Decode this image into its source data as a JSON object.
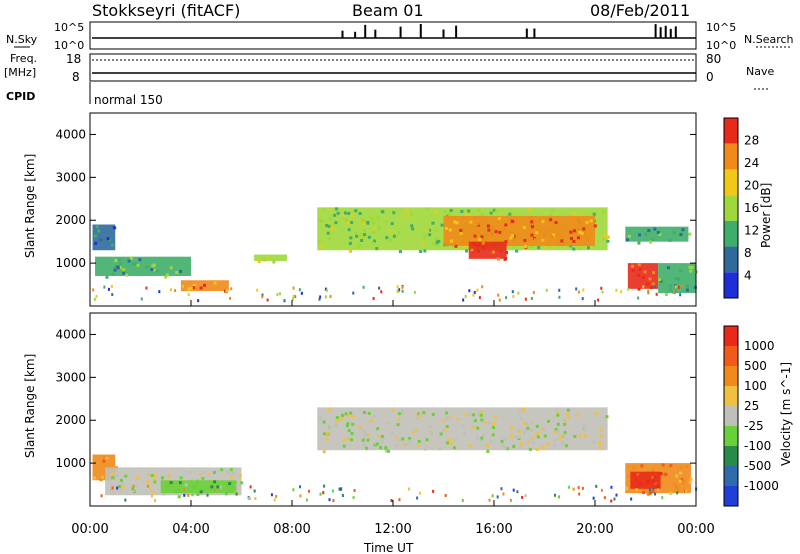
{
  "header": {
    "station": "Stokkseyri (fitACF)",
    "beam": "Beam 01",
    "date": "08/Feb/2011"
  },
  "noise_panel": {
    "left_label": "N.Sky",
    "right_label": "N.Search",
    "left_ticks": [
      "10^5",
      "10^0"
    ],
    "right_ticks": [
      "10^5",
      "10^0"
    ]
  },
  "freq_panel": {
    "left_label_line1": "Freq.",
    "left_label_line2": "[MHz]",
    "right_label": "Nave",
    "left_ticks": [
      "18",
      "8"
    ],
    "right_ticks": [
      "80",
      "0"
    ]
  },
  "cpid_panel": {
    "label": "CPID",
    "mode": "normal 150"
  },
  "power_panel": {
    "ylabel": "Slant Range [km]",
    "yticks": [
      "4000",
      "3000",
      "2000",
      "1000"
    ],
    "colorbar_label": "Power [dB]",
    "colorbar_ticks": [
      "28",
      "24",
      "20",
      "16",
      "12",
      "8",
      "4"
    ],
    "colors": [
      "#1f2fd8",
      "#2f6a9a",
      "#3fae6a",
      "#9fd83a",
      "#f0c81a",
      "#f08a1a",
      "#e82a1a"
    ]
  },
  "velocity_panel": {
    "ylabel": "Slant Range [km]",
    "yticks": [
      "4000",
      "3000",
      "2000",
      "1000"
    ],
    "colorbar_label": "Velocity  [m s^-1]",
    "colorbar_ticks": [
      "1000",
      "500",
      "100",
      "25",
      "-25",
      "-100",
      "-500",
      "-1000"
    ],
    "colors": [
      "#1f3fd8",
      "#2f6aaa",
      "#2a8a4a",
      "#6ad03a",
      "#c0c0b8",
      "#f0c040",
      "#f08a1a",
      "#f05a1a",
      "#e82a1a"
    ]
  },
  "xaxis": {
    "label": "Time UT",
    "ticks": [
      "00:00",
      "04:00",
      "08:00",
      "12:00",
      "16:00",
      "20:00",
      "00:00"
    ]
  },
  "chart_data": {
    "type": "heatmap",
    "x_unit": "hours UT",
    "x_range": [
      0,
      24
    ],
    "y_range": [
      0,
      4500
    ],
    "power_regions": [
      {
        "t0": 0.1,
        "t1": 1.0,
        "r0": 1300,
        "r1": 1900,
        "level": 1
      },
      {
        "t0": 0.2,
        "t1": 4.0,
        "r0": 700,
        "r1": 1150,
        "level": 2
      },
      {
        "t0": 3.6,
        "t1": 5.5,
        "r0": 350,
        "r1": 600,
        "level": 5
      },
      {
        "t0": 6.5,
        "t1": 7.8,
        "r0": 1050,
        "r1": 1200,
        "level": 3
      },
      {
        "t0": 9.0,
        "t1": 20.5,
        "r0": 1300,
        "r1": 2300,
        "level": 3
      },
      {
        "t0": 14.0,
        "t1": 20.0,
        "r0": 1400,
        "r1": 2100,
        "level": 5
      },
      {
        "t0": 15.0,
        "t1": 16.5,
        "r0": 1100,
        "r1": 1500,
        "level": 6
      },
      {
        "t0": 21.2,
        "t1": 23.7,
        "r0": 1500,
        "r1": 1850,
        "level": 2
      },
      {
        "t0": 21.3,
        "t1": 22.5,
        "r0": 400,
        "r1": 1000,
        "level": 6
      },
      {
        "t0": 22.5,
        "t1": 24.0,
        "r0": 300,
        "r1": 1000,
        "level": 2
      }
    ],
    "velocity_regions": [
      {
        "t0": 9.0,
        "t1": 20.5,
        "r0": 1300,
        "r1": 2300,
        "level": 4
      },
      {
        "t0": 0.1,
        "t1": 1.0,
        "r0": 600,
        "r1": 1200,
        "level": 6
      },
      {
        "t0": 0.6,
        "t1": 6.0,
        "r0": 250,
        "r1": 900,
        "level": 4
      },
      {
        "t0": 2.8,
        "t1": 5.8,
        "r0": 300,
        "r1": 600,
        "level": 3
      },
      {
        "t0": 21.2,
        "t1": 23.8,
        "r0": 300,
        "r1": 1000,
        "level": 6
      },
      {
        "t0": 21.4,
        "t1": 22.6,
        "r0": 400,
        "r1": 800,
        "level": 8
      }
    ]
  }
}
